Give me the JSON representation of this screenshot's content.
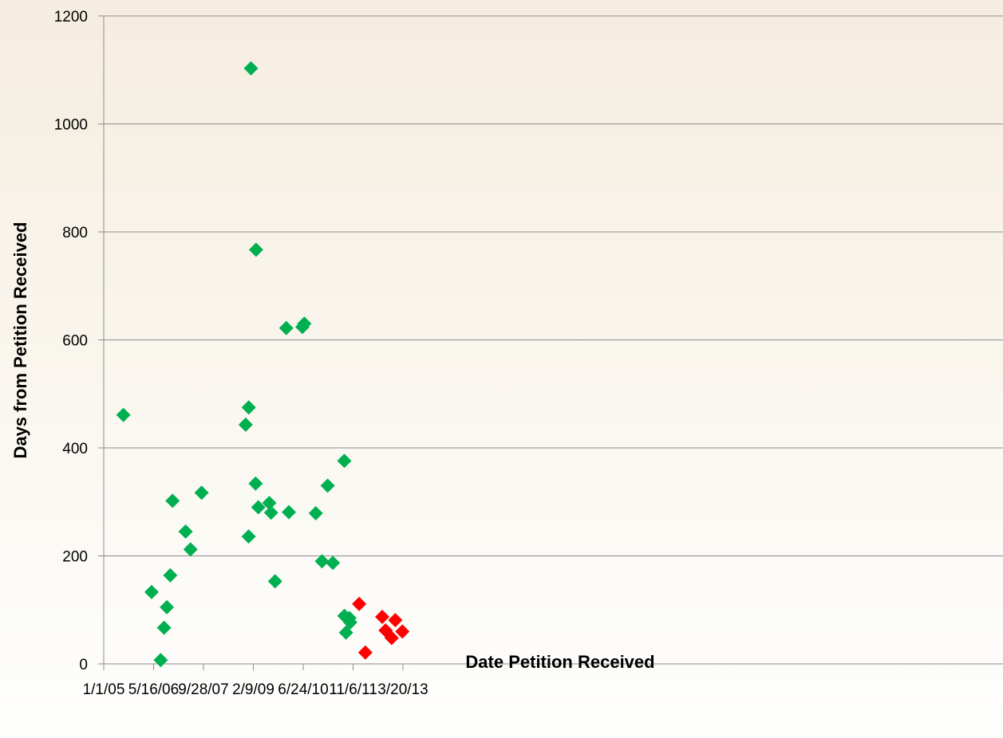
{
  "chart_data": {
    "type": "scatter",
    "title": "",
    "xlabel": "Date Petition Received",
    "ylabel": "Days from Petition Received",
    "x_axis_type": "date",
    "xlim": [
      "2005-01-01",
      "2013-08-25"
    ],
    "xticks": [
      {
        "value": "2005-01-01",
        "label": "1/1/05"
      },
      {
        "value": "2006-05-16",
        "label": "5/16/06"
      },
      {
        "value": "2007-09-28",
        "label": "9/28/07"
      },
      {
        "value": "2009-02-09",
        "label": "2/9/09"
      },
      {
        "value": "2010-06-24",
        "label": "6/24/10"
      },
      {
        "value": "2011-11-06",
        "label": "11/6/11"
      },
      {
        "value": "2013-03-20",
        "label": "3/20/13"
      }
    ],
    "ylim": [
      0,
      1200
    ],
    "yticks": [
      0,
      200,
      400,
      600,
      800,
      1000,
      1200
    ],
    "grid": "horizontal",
    "legend": "none",
    "marker": "diamond",
    "series": [
      {
        "color": "#00b050",
        "points": [
          {
            "x": "2005-07-17",
            "y": 461
          },
          {
            "x": "2006-04-26",
            "y": 133
          },
          {
            "x": "2006-07-26",
            "y": 7
          },
          {
            "x": "2006-08-29",
            "y": 67
          },
          {
            "x": "2006-09-26",
            "y": 105
          },
          {
            "x": "2006-10-30",
            "y": 164
          },
          {
            "x": "2006-11-22",
            "y": 302
          },
          {
            "x": "2007-04-02",
            "y": 245
          },
          {
            "x": "2007-05-21",
            "y": 212
          },
          {
            "x": "2007-09-09",
            "y": 317
          },
          {
            "x": "2008-11-24",
            "y": 443
          },
          {
            "x": "2008-12-24",
            "y": 236
          },
          {
            "x": "2008-12-25",
            "y": 475
          },
          {
            "x": "2009-01-16",
            "y": 1103
          },
          {
            "x": "2009-03-04",
            "y": 334
          },
          {
            "x": "2009-03-08",
            "y": 767
          },
          {
            "x": "2009-03-31",
            "y": 290
          },
          {
            "x": "2009-07-19",
            "y": 298
          },
          {
            "x": "2009-08-06",
            "y": 280
          },
          {
            "x": "2009-09-15",
            "y": 153
          },
          {
            "x": "2010-01-05",
            "y": 622
          },
          {
            "x": "2010-01-31",
            "y": 281
          },
          {
            "x": "2010-06-16",
            "y": 624
          },
          {
            "x": "2010-07-05",
            "y": 630
          },
          {
            "x": "2010-10-28",
            "y": 279
          },
          {
            "x": "2010-12-29",
            "y": 190
          },
          {
            "x": "2011-02-24",
            "y": 330
          },
          {
            "x": "2011-04-17",
            "y": 187
          },
          {
            "x": "2011-08-10",
            "y": 376
          },
          {
            "x": "2011-08-11",
            "y": 89
          },
          {
            "x": "2011-08-27",
            "y": 58
          },
          {
            "x": "2011-09-30",
            "y": 85
          },
          {
            "x": "2011-10-08",
            "y": 77
          }
        ]
      },
      {
        "color": "#ff0000",
        "points": [
          {
            "x": "2012-01-06",
            "y": 111
          },
          {
            "x": "2012-03-08",
            "y": 21
          },
          {
            "x": "2012-08-24",
            "y": 87
          },
          {
            "x": "2012-09-27",
            "y": 62
          },
          {
            "x": "2012-11-27",
            "y": 48
          },
          {
            "x": "2013-01-02",
            "y": 81
          },
          {
            "x": "2013-03-14",
            "y": 60
          }
        ]
      }
    ]
  }
}
